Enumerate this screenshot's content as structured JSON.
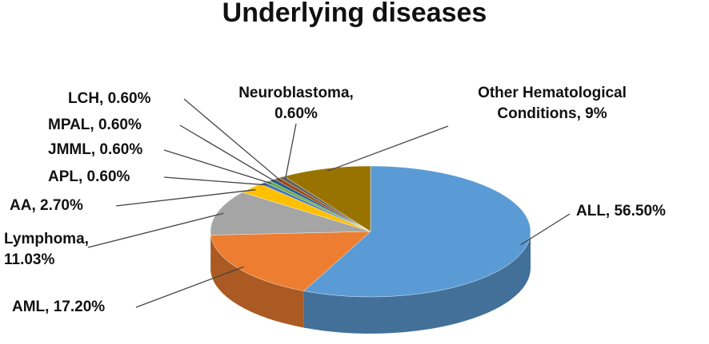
{
  "chart_data": {
    "type": "pie3d",
    "title": "Underlying diseases",
    "values": [
      56.5,
      17.2,
      11.03,
      2.7,
      0.6,
      0.6,
      0.6,
      0.6,
      0.6,
      9
    ],
    "value_labels": [
      [
        "ALL, 56.50%"
      ],
      [
        "AML, 17.20%"
      ],
      [
        "Lymphoma,",
        "11.03%"
      ],
      [
        "AA, 2.70%"
      ],
      [
        "APL, 0.60%"
      ],
      [
        "JMML, 0.60%"
      ],
      [
        "MPAL, 0.60%"
      ],
      [
        "LCH, 0.60%"
      ],
      [
        "Neuroblastoma,",
        "0.60%"
      ],
      [
        "Other Hematological",
        "Conditions, 9%"
      ]
    ],
    "colors": [
      "#5b9bd5",
      "#ed7d31",
      "#a5a5a5",
      "#ffc000",
      "#4472c4",
      "#70ad47",
      "#255e91",
      "#9e480e",
      "#636363",
      "#997300"
    ]
  }
}
